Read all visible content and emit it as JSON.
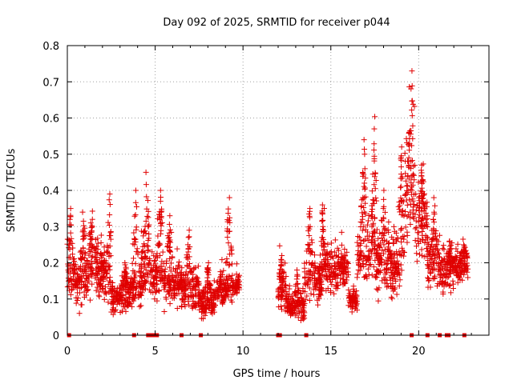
{
  "chart_data": {
    "type": "scatter",
    "title": "Day 092 of 2025, SRMTID for receiver p044",
    "xlabel": "GPS time / hours",
    "ylabel": "SRMTID / TECUs",
    "xlim": [
      0,
      24
    ],
    "ylim": [
      0,
      0.8
    ],
    "x_ticks": [
      0,
      5,
      10,
      15,
      20
    ],
    "x_tick_labels": [
      "0",
      "5",
      "10",
      "15",
      "20"
    ],
    "y_ticks": [
      0,
      0.1,
      0.2,
      0.3,
      0.4,
      0.5,
      0.6,
      0.7,
      0.8
    ],
    "y_tick_labels": [
      "0",
      "0.1",
      "0.2",
      "0.3",
      "0.4",
      "0.5",
      "0.6",
      "0.7",
      "0.8"
    ],
    "grid": true,
    "marker": "plus",
    "color": "#e00000",
    "series": [
      {
        "name": "SRMTID",
        "segments": [
          {
            "x_range": [
              0.0,
              0.5
            ],
            "base": 0.17,
            "spread": 0.06,
            "peaks": [
              [
                0.15,
                0.35
              ]
            ]
          },
          {
            "x_range": [
              0.5,
              1.0
            ],
            "base": 0.14,
            "spread": 0.06,
            "peaks": [
              [
                0.9,
                0.34
              ]
            ]
          },
          {
            "x_range": [
              1.0,
              2.0
            ],
            "base": 0.18,
            "spread": 0.06,
            "peaks": [
              [
                1.4,
                0.32
              ]
            ]
          },
          {
            "x_range": [
              2.0,
              2.5
            ],
            "base": 0.16,
            "spread": 0.07,
            "peaks": [
              [
                2.4,
                0.39
              ]
            ]
          },
          {
            "x_range": [
              2.5,
              3.5
            ],
            "base": 0.1,
            "spread": 0.04,
            "peaks": [
              [
                3.3,
                0.2
              ]
            ]
          },
          {
            "x_range": [
              3.5,
              4.2
            ],
            "base": 0.13,
            "spread": 0.05,
            "peaks": [
              [
                3.9,
                0.4
              ]
            ]
          },
          {
            "x_range": [
              4.2,
              4.8
            ],
            "base": 0.18,
            "spread": 0.06,
            "peaks": [
              [
                4.5,
                0.45
              ]
            ]
          },
          {
            "x_range": [
              4.8,
              5.5
            ],
            "base": 0.16,
            "spread": 0.05,
            "peaks": [
              [
                5.3,
                0.4
              ]
            ]
          },
          {
            "x_range": [
              5.5,
              6.5
            ],
            "base": 0.14,
            "spread": 0.05,
            "peaks": [
              [
                5.8,
                0.33
              ]
            ]
          },
          {
            "x_range": [
              6.5,
              7.5
            ],
            "base": 0.13,
            "spread": 0.05,
            "peaks": [
              [
                6.9,
                0.29
              ]
            ]
          },
          {
            "x_range": [
              7.5,
              8.5
            ],
            "base": 0.09,
            "spread": 0.04,
            "peaks": [
              [
                8.0,
                0.2
              ]
            ]
          },
          {
            "x_range": [
              8.5,
              9.5
            ],
            "base": 0.13,
            "spread": 0.04,
            "peaks": [
              [
                9.2,
                0.38
              ]
            ]
          },
          {
            "x_range": [
              9.5,
              9.8
            ],
            "base": 0.14,
            "spread": 0.03,
            "peaks": []
          },
          {
            "x_range": [
              12.0,
              12.5
            ],
            "base": 0.12,
            "spread": 0.05,
            "peaks": [
              [
                12.2,
                0.22
              ]
            ]
          },
          {
            "x_range": [
              12.5,
              13.5
            ],
            "base": 0.08,
            "spread": 0.03,
            "peaks": [
              [
                13.1,
                0.18
              ]
            ]
          },
          {
            "x_range": [
              13.5,
              14.5
            ],
            "base": 0.15,
            "spread": 0.05,
            "peaks": [
              [
                13.8,
                0.35
              ]
            ]
          },
          {
            "x_range": [
              14.5,
              15.5
            ],
            "base": 0.18,
            "spread": 0.05,
            "peaks": [
              [
                14.5,
                0.36
              ]
            ]
          },
          {
            "x_range": [
              15.5,
              16.0
            ],
            "base": 0.19,
            "spread": 0.04,
            "peaks": []
          },
          {
            "x_range": [
              16.0,
              16.5
            ],
            "base": 0.1,
            "spread": 0.03,
            "peaks": []
          },
          {
            "x_range": [
              16.5,
              17.0
            ],
            "base": 0.22,
            "spread": 0.07,
            "peaks": [
              [
                16.9,
                0.54
              ]
            ]
          },
          {
            "x_range": [
              17.0,
              17.6
            ],
            "base": 0.24,
            "spread": 0.08,
            "peaks": [
              [
                17.5,
                0.57
              ]
            ]
          },
          {
            "x_range": [
              17.6,
              18.6
            ],
            "base": 0.2,
            "spread": 0.08,
            "peaks": [
              [
                18.0,
                0.4
              ]
            ]
          },
          {
            "x_range": [
              18.6,
              19.2
            ],
            "base": 0.22,
            "spread": 0.08,
            "peaks": [
              [
                19.0,
                0.52
              ]
            ]
          },
          {
            "x_range": [
              19.2,
              19.8
            ],
            "base": 0.4,
            "spread": 0.12,
            "peaks": [
              [
                19.6,
                0.73
              ]
            ]
          },
          {
            "x_range": [
              19.8,
              20.5
            ],
            "base": 0.3,
            "spread": 0.1,
            "peaks": [
              [
                20.2,
                0.47
              ]
            ]
          },
          {
            "x_range": [
              20.5,
              21.2
            ],
            "base": 0.2,
            "spread": 0.06,
            "peaks": [
              [
                20.9,
                0.38
              ]
            ]
          },
          {
            "x_range": [
              21.2,
              22.0
            ],
            "base": 0.17,
            "spread": 0.05,
            "peaks": [
              [
                21.8,
                0.26
              ]
            ]
          },
          {
            "x_range": [
              22.0,
              22.8
            ],
            "base": 0.19,
            "spread": 0.04,
            "peaks": [
              [
                22.6,
                0.25
              ]
            ]
          }
        ],
        "zero_points_x": [
          0.1,
          3.8,
          4.6,
          4.8,
          5.0,
          5.1,
          6.5,
          7.6,
          12.0,
          12.1,
          13.6,
          19.6,
          20.5,
          21.2,
          21.6,
          21.7,
          22.6
        ]
      }
    ]
  }
}
